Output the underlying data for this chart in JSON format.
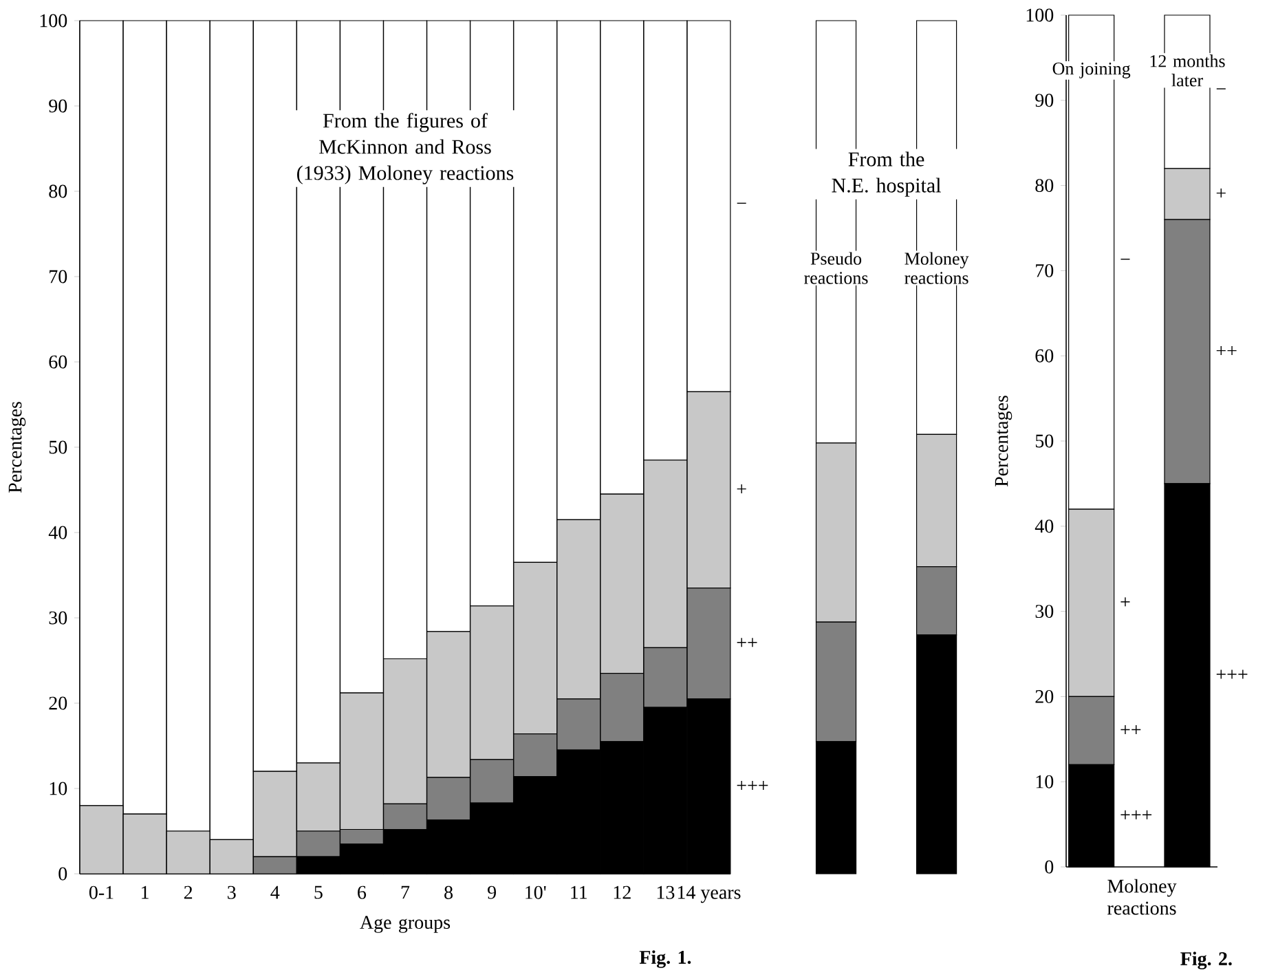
{
  "chart_data": [
    {
      "type": "bar",
      "stacked": true,
      "title": "From the figures of McKinnon and Ross (1933) Moloney reactions",
      "xlabel": "Age groups",
      "ylabel": "Percentages",
      "annotations": [
        "Fig. 1."
      ],
      "categories": [
        "0-1",
        "1",
        "2",
        "3",
        "4",
        "5",
        "6",
        "7",
        "8",
        "9",
        "10'",
        "11",
        "12",
        "13",
        "14 years"
      ],
      "ylim": [
        0,
        100
      ],
      "yticks": [
        0,
        10,
        20,
        30,
        40,
        50,
        60,
        70,
        80,
        90,
        100
      ],
      "series": [
        {
          "name": "+++",
          "color": "#000000",
          "values": [
            0,
            0,
            0,
            0,
            0,
            2,
            3.5,
            5.2,
            6.3,
            8.3,
            11.4,
            14.5,
            15.5,
            19.5,
            20.5
          ]
        },
        {
          "name": "++",
          "color": "#808080",
          "values": [
            0,
            0,
            0,
            0,
            2,
            3,
            1.7,
            3,
            5,
            5.1,
            5,
            6,
            8,
            7,
            13
          ]
        },
        {
          "name": "+",
          "color": "#c8c8c8",
          "values": [
            8,
            7,
            5,
            4,
            10,
            8,
            16,
            17,
            17.1,
            18,
            20.1,
            21,
            21,
            22,
            23
          ]
        },
        {
          "name": "−",
          "color": "#ffffff",
          "values": [
            92,
            93,
            95,
            96,
            88,
            87,
            78.8,
            74.8,
            71.6,
            68.6,
            63.5,
            58.5,
            55.5,
            51.5,
            43.5
          ]
        }
      ]
    },
    {
      "type": "bar",
      "stacked": true,
      "title": "From the N.E. hospital",
      "categories": [
        "Pseudo reactions",
        "Moloney reactions"
      ],
      "ylim": [
        0,
        100
      ],
      "tick_labels": false,
      "series": [
        {
          "color": "#000000",
          "values": [
            15.5,
            28
          ]
        },
        {
          "color": "#808080",
          "values": [
            14,
            8
          ]
        },
        {
          "color": "#c8c8c8",
          "values": [
            21,
            15.5
          ]
        },
        {
          "color": "#ffffff",
          "values": [
            49.5,
            48.5
          ]
        }
      ]
    },
    {
      "type": "bar",
      "stacked": true,
      "xlabel": "Moloney reactions",
      "ylabel": "Percentages",
      "annotations": [
        "Fig. 2."
      ],
      "categories": [
        "On joining",
        "12 months later"
      ],
      "ylim": [
        0,
        100
      ],
      "yticks": [
        0,
        10,
        20,
        30,
        40,
        50,
        60,
        70,
        80,
        90,
        100
      ],
      "series": [
        {
          "name": "+++",
          "color": "#000000",
          "values": [
            12,
            45
          ]
        },
        {
          "name": "++",
          "color": "#808080",
          "values": [
            8,
            31
          ]
        },
        {
          "name": "+",
          "color": "#c8c8c8",
          "values": [
            22,
            6
          ]
        },
        {
          "name": "−",
          "color": "#ffffff",
          "values": [
            58,
            18
          ]
        }
      ]
    }
  ]
}
